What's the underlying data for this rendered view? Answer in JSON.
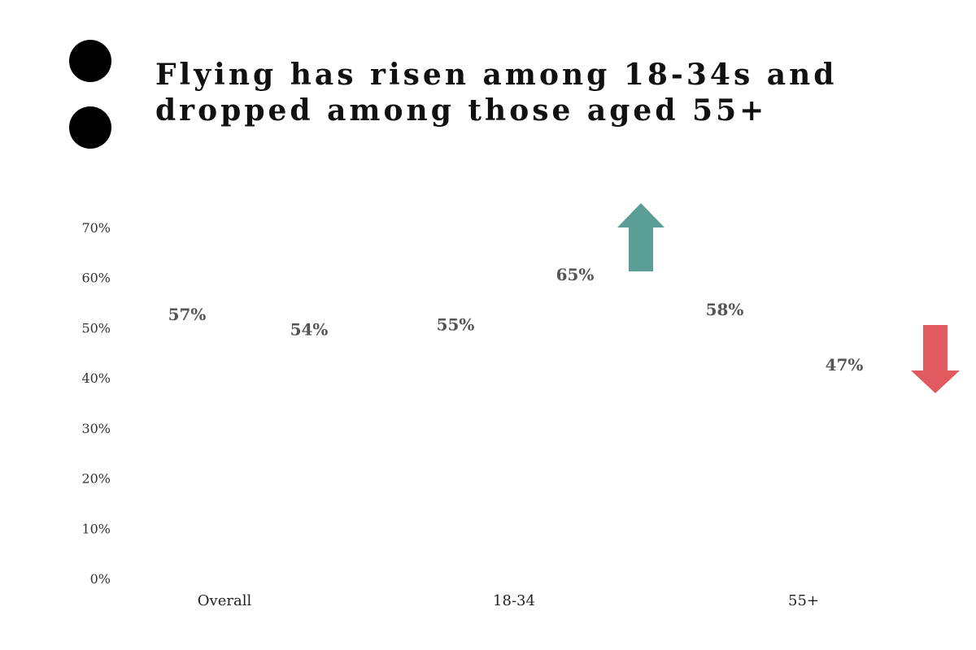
{
  "header": {
    "title_line1": "Flying has risen among 18-34s and",
    "title_line2": "dropped among those aged 55+"
  },
  "colors": {
    "up_arrow": "#5a9e96",
    "down_arrow": "#e05a5f",
    "label_text": "#555555"
  },
  "chart_data": {
    "type": "bar",
    "title": "Flying has risen among 18-34s and dropped among those aged 55+",
    "xlabel": "",
    "ylabel": "",
    "ylim": [
      0,
      70
    ],
    "y_ticks": [
      "0%",
      "10%",
      "20%",
      "30%",
      "40%",
      "50%",
      "60%",
      "70%"
    ],
    "y_tick_values": [
      0,
      10,
      20,
      30,
      40,
      50,
      60,
      70
    ],
    "categories": [
      "Overall",
      "18-34",
      "55+"
    ],
    "values_per_category": [
      [
        57,
        54
      ],
      [
        55,
        65
      ],
      [
        58,
        47
      ]
    ],
    "data_labels": [
      [
        "57%",
        "54%"
      ],
      [
        "55%",
        "65%"
      ],
      [
        "58%",
        "47%"
      ]
    ],
    "bars_visible": false,
    "grid": false,
    "annotations": [
      {
        "category": "18-34",
        "icon": "arrow-up-icon",
        "color": "#5a9e96"
      },
      {
        "category": "55+",
        "icon": "arrow-down-icon",
        "color": "#e05a5f"
      }
    ]
  }
}
